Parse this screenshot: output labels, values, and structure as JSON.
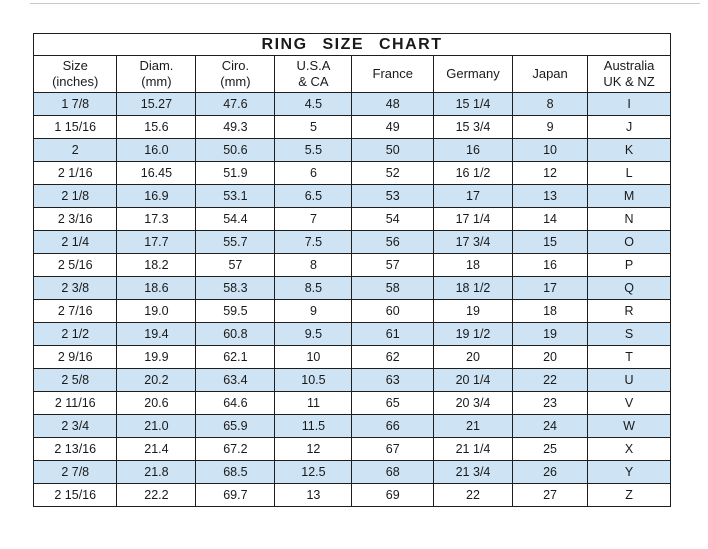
{
  "colors": {
    "row_shade": "#cee3f3",
    "border": "#1e1e1e",
    "text": "#1a1a1a",
    "background": "#ffffff"
  },
  "chart_data": {
    "type": "table",
    "title": "RING SIZE CHART",
    "columns": [
      "Size (inches)",
      "Diam. (mm)",
      "Ciro. (mm)",
      "U.S.A & CA",
      "France",
      "Germany",
      "Japan",
      "Australia UK & NZ"
    ],
    "header_lines": [
      [
        "Size",
        "(inches)"
      ],
      [
        "Diam.",
        "(mm)"
      ],
      [
        "Ciro.",
        "(mm)"
      ],
      [
        "U.S.A",
        "& CA"
      ],
      [
        "France"
      ],
      [
        "Germany"
      ],
      [
        "Japan"
      ],
      [
        "Australia",
        "UK & NZ"
      ]
    ],
    "rows": [
      [
        "1 7/8",
        "15.27",
        "47.6",
        "4.5",
        "48",
        "15 1/4",
        "8",
        "I"
      ],
      [
        "1 15/16",
        "15.6",
        "49.3",
        "5",
        "49",
        "15 3/4",
        "9",
        "J"
      ],
      [
        "2",
        "16.0",
        "50.6",
        "5.5",
        "50",
        "16",
        "10",
        "K"
      ],
      [
        "2 1/16",
        "16.45",
        "51.9",
        "6",
        "52",
        "16 1/2",
        "12",
        "L"
      ],
      [
        "2 1/8",
        "16.9",
        "53.1",
        "6.5",
        "53",
        "17",
        "13",
        "M"
      ],
      [
        "2 3/16",
        "17.3",
        "54.4",
        "7",
        "54",
        "17 1/4",
        "14",
        "N"
      ],
      [
        "2 1/4",
        "17.7",
        "55.7",
        "7.5",
        "56",
        "17 3/4",
        "15",
        "O"
      ],
      [
        "2 5/16",
        "18.2",
        "57",
        "8",
        "57",
        "18",
        "16",
        "P"
      ],
      [
        "2 3/8",
        "18.6",
        "58.3",
        "8.5",
        "58",
        "18 1/2",
        "17",
        "Q"
      ],
      [
        "2 7/16",
        "19.0",
        "59.5",
        "9",
        "60",
        "19",
        "18",
        "R"
      ],
      [
        "2 1/2",
        "19.4",
        "60.8",
        "9.5",
        "61",
        "19 1/2",
        "19",
        "S"
      ],
      [
        "2 9/16",
        "19.9",
        "62.1",
        "10",
        "62",
        "20",
        "20",
        "T"
      ],
      [
        "2 5/8",
        "20.2",
        "63.4",
        "10.5",
        "63",
        "20 1/4",
        "22",
        "U"
      ],
      [
        "2 11/16",
        "20.6",
        "64.6",
        "11",
        "65",
        "20 3/4",
        "23",
        "V"
      ],
      [
        "2 3/4",
        "21.0",
        "65.9",
        "11.5",
        "66",
        "21",
        "24",
        "W"
      ],
      [
        "2 13/16",
        "21.4",
        "67.2",
        "12",
        "67",
        "21 1/4",
        "25",
        "X"
      ],
      [
        "2 7/8",
        "21.8",
        "68.5",
        "12.5",
        "68",
        "21 3/4",
        "26",
        "Y"
      ],
      [
        "2 15/16",
        "22.2",
        "69.7",
        "13",
        "69",
        "22",
        "27",
        "Z"
      ]
    ],
    "shading": "alternating rows, first data row shaded light blue",
    "grid": true,
    "legend_position": "none"
  }
}
